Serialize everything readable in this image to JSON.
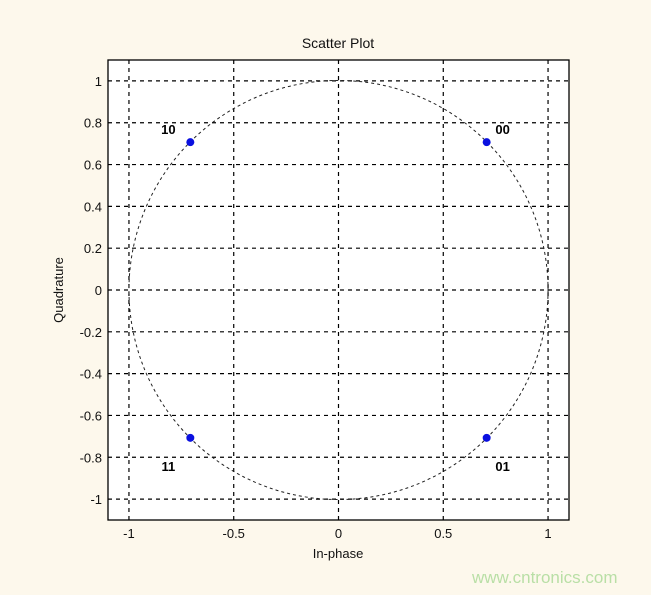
{
  "chart_data": {
    "type": "scatter",
    "title": "Scatter Plot",
    "xlabel": "In-phase",
    "ylabel": "Quadrature",
    "xlim": [
      -1.1,
      1.1
    ],
    "ylim": [
      -1.1,
      1.1
    ],
    "x_ticks": [
      "-1",
      "-0.5",
      "0",
      "0.5",
      "1"
    ],
    "x_tick_values": [
      -1,
      -0.5,
      0,
      0.5,
      1
    ],
    "y_ticks": [
      "1",
      "0.8",
      "0.6",
      "0.4",
      "0.2",
      "0",
      "-0.2",
      "-0.4",
      "-0.6",
      "-0.8",
      "-1"
    ],
    "y_tick_values": [
      1,
      0.8,
      0.6,
      0.4,
      0.2,
      0,
      -0.2,
      -0.4,
      -0.6,
      -0.8,
      -1
    ],
    "grid": true,
    "reference_circle": {
      "radius": 1,
      "style": "dashed"
    },
    "points": [
      {
        "x": 0.7071,
        "y": 0.7071,
        "label": "00"
      },
      {
        "x": -0.7071,
        "y": 0.7071,
        "label": "10"
      },
      {
        "x": -0.7071,
        "y": -0.7071,
        "label": "11"
      },
      {
        "x": 0.7071,
        "y": -0.7071,
        "label": "01"
      }
    ],
    "point_color": "#0a10e0"
  },
  "watermark": "www.cntronics.com"
}
